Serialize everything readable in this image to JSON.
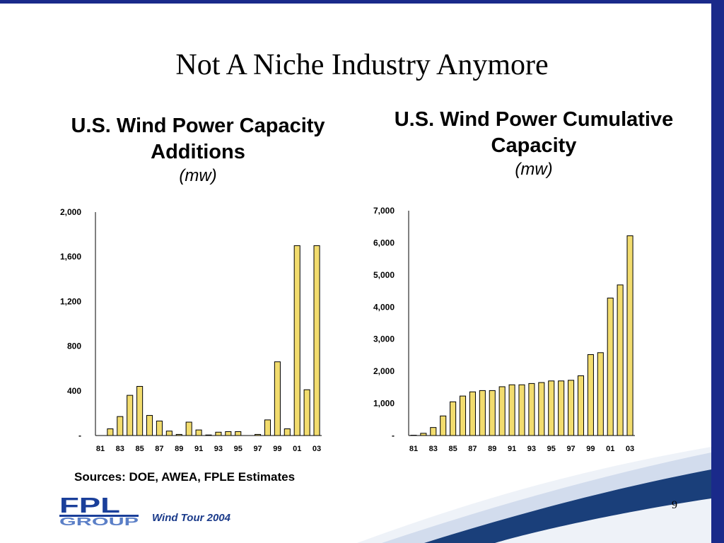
{
  "slide": {
    "title": "Not A Niche Industry Anymore",
    "sources": "Sources: DOE, AWEA, FPLE Estimates",
    "footer": "Wind Tour 2004",
    "page_number": "9",
    "logo_top": "FPL",
    "logo_bottom": "GROUP"
  },
  "colors": {
    "bar_fill": "#f2dc6e",
    "bar_stroke": "#000000",
    "accent": "#1a2a8a"
  },
  "chart_data": [
    {
      "type": "bar",
      "title": "U.S. Wind Power Capacity Additions",
      "unit": "(mw)",
      "categories": [
        "81",
        "82",
        "83",
        "84",
        "85",
        "86",
        "87",
        "88",
        "89",
        "90",
        "91",
        "92",
        "93",
        "94",
        "95",
        "96",
        "97",
        "98",
        "99",
        "00",
        "01",
        "02",
        "03"
      ],
      "tick_labels": [
        "81",
        "83",
        "85",
        "87",
        "89",
        "91",
        "93",
        "95",
        "97",
        "99",
        "01",
        "03"
      ],
      "values": [
        0,
        60,
        170,
        360,
        440,
        180,
        130,
        40,
        10,
        120,
        50,
        5,
        30,
        35,
        35,
        0,
        10,
        140,
        660,
        60,
        1700,
        410,
        1700
      ],
      "ylim": [
        0,
        2000
      ],
      "yticks": [
        0,
        400,
        800,
        1200,
        1600,
        2000
      ],
      "ytick_labels": [
        "-",
        "400",
        "800",
        "1,200",
        "1,600",
        "2,000"
      ],
      "grid": false
    },
    {
      "type": "bar",
      "title": "U.S. Wind Power Cumulative Capacity",
      "unit": "(mw)",
      "categories": [
        "81",
        "82",
        "83",
        "84",
        "85",
        "86",
        "87",
        "88",
        "89",
        "90",
        "91",
        "92",
        "93",
        "94",
        "95",
        "96",
        "97",
        "98",
        "99",
        "00",
        "01",
        "02",
        "03"
      ],
      "tick_labels": [
        "81",
        "83",
        "85",
        "87",
        "89",
        "91",
        "93",
        "95",
        "97",
        "99",
        "01",
        "03"
      ],
      "values": [
        10,
        70,
        250,
        610,
        1050,
        1230,
        1360,
        1400,
        1400,
        1520,
        1580,
        1580,
        1620,
        1650,
        1700,
        1700,
        1720,
        1860,
        2520,
        2580,
        4280,
        4690,
        6220
      ],
      "ylim": [
        0,
        7000
      ],
      "yticks": [
        0,
        1000,
        2000,
        3000,
        4000,
        5000,
        6000,
        7000
      ],
      "ytick_labels": [
        "-",
        "1,000",
        "2,000",
        "3,000",
        "4,000",
        "5,000",
        "6,000",
        "7,000"
      ],
      "grid": false
    }
  ]
}
